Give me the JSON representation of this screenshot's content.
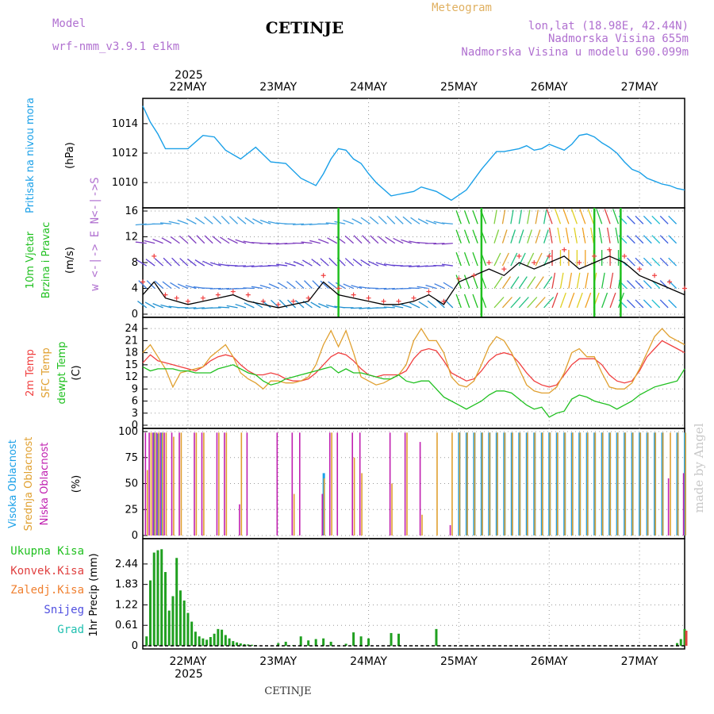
{
  "header": {
    "model_label": "Model",
    "model_name": "wrf-nmm_v3.9.1 e1km",
    "station": "CETINJE",
    "chart_kind": "Meteogram",
    "lonlat": "lon,lat (18.98E, 42.44N)",
    "altitude": "Nadmorska Visina 655m",
    "model_altitude": "Nadmorska Visina u modelu 690.099m",
    "footer_station": "CETINJE",
    "watermark": "made by Angel",
    "year": "2025"
  },
  "colors": {
    "pressure": "#1aa0e8",
    "temp2m": "#f04040",
    "sfc": "#e0a030",
    "dew": "#20c020",
    "cloud_high": "#1aa0e8",
    "cloud_mid": "#e0a030",
    "cloud_low": "#c020b0",
    "precip_total": "#20a020",
    "precip_conv": "#e04040",
    "precip_strat": "#f08030",
    "snow": "#5050e0",
    "hail": "#20c0b0"
  },
  "chart_data": [
    {
      "id": "pressure",
      "type": "line",
      "ylabel_main": "Pritisak na nivou mora",
      "ylabel_unit": "(hPa)",
      "x_unit": "hours from 22 May 00:00 (local)",
      "xlim": [
        -12,
        132
      ],
      "ylim": [
        1008.5,
        1015.5
      ],
      "yticks": [
        "1010",
        "1012",
        "1014"
      ],
      "x": [
        -12,
        -10,
        -8,
        -6,
        -3,
        0,
        4,
        7,
        10,
        14,
        18,
        22,
        26,
        30,
        34,
        36,
        38,
        40,
        42,
        44,
        46,
        48,
        50,
        54,
        56,
        60,
        62,
        66,
        70,
        74,
        78,
        82,
        84,
        88,
        90,
        92,
        94,
        96,
        100,
        102,
        104,
        106,
        108,
        110,
        112,
        114,
        116,
        118,
        120,
        122,
        124,
        126,
        128,
        130,
        132
      ],
      "values": [
        1015.2,
        1014.1,
        1013.3,
        1012.3,
        1012.3,
        1012.3,
        1013.2,
        1013.1,
        1012.2,
        1011.6,
        1012.4,
        1011.4,
        1011.3,
        1010.3,
        1009.8,
        1010.6,
        1011.6,
        1012.3,
        1012.2,
        1011.6,
        1011.3,
        1010.6,
        1010.0,
        1009.1,
        1009.2,
        1009.4,
        1009.7,
        1009.4,
        1008.8,
        1009.5,
        1010.9,
        1012.1,
        1012.1,
        1012.3,
        1012.5,
        1012.2,
        1012.3,
        1012.6,
        1012.2,
        1012.6,
        1013.2,
        1013.3,
        1013.1,
        1012.7,
        1012.4,
        1012.0,
        1011.4,
        1010.9,
        1010.7,
        1010.3,
        1010.1,
        1009.9,
        1009.8,
        1009.6,
        1009.5
      ]
    },
    {
      "id": "wind",
      "type": "line",
      "ylabel_main": "10m Vjetar",
      "ylabel_sub": "Brzina i Pravac",
      "ylabel_unit": "(m/s)",
      "compass": "w <-|-> E  N<-|->S",
      "ylim": [
        0,
        16
      ],
      "yticks": [
        "0",
        "4",
        "8",
        "12",
        "16"
      ],
      "x": [
        -12,
        -9,
        -6,
        -3,
        0,
        4,
        8,
        12,
        16,
        20,
        24,
        28,
        32,
        36,
        40,
        44,
        48,
        52,
        56,
        60,
        64,
        68,
        72,
        76,
        80,
        84,
        88,
        92,
        96,
        100,
        104,
        108,
        112,
        116,
        120,
        124,
        128,
        132
      ],
      "speed": [
        3,
        5,
        2.5,
        2,
        1.5,
        2,
        2.5,
        3,
        2,
        1.5,
        1,
        1.5,
        2,
        5,
        3,
        2.5,
        2,
        1.5,
        1.5,
        2,
        3,
        1.5,
        5,
        6,
        7,
        6,
        8,
        7,
        8,
        9,
        7,
        8,
        9,
        8,
        6,
        5,
        4,
        3
      ],
      "gust": [
        5,
        9,
        3,
        2.5,
        2,
        2.5,
        3,
        3.5,
        3,
        2,
        1.5,
        2,
        2.5,
        6,
        4,
        3,
        2.5,
        2,
        2,
        2.5,
        3.5,
        2,
        5.5,
        6,
        8,
        7,
        9,
        8,
        9,
        10,
        8,
        9,
        10,
        9,
        7,
        6,
        5,
        4
      ]
    },
    {
      "id": "temperature",
      "type": "line",
      "ylabel_series": [
        "2m Temp",
        "SFC Temp",
        "dewpt Temp"
      ],
      "ylabel_unit": "(C)",
      "ylim": [
        0,
        26
      ],
      "yticks": [
        "0",
        "3",
        "6",
        "9",
        "12",
        "15",
        "18",
        "21",
        "24"
      ],
      "x": [
        -12,
        -10,
        -8,
        -6,
        -4,
        -2,
        0,
        2,
        4,
        6,
        8,
        10,
        12,
        14,
        16,
        18,
        20,
        22,
        24,
        26,
        28,
        30,
        32,
        34,
        36,
        38,
        40,
        42,
        44,
        46,
        48,
        50,
        52,
        54,
        56,
        58,
        60,
        62,
        64,
        66,
        68,
        70,
        72,
        74,
        76,
        78,
        80,
        82,
        84,
        86,
        88,
        90,
        92,
        94,
        96,
        98,
        100,
        102,
        104,
        106,
        108,
        110,
        112,
        114,
        116,
        118,
        120,
        122,
        124,
        126,
        128,
        130,
        132
      ],
      "series": [
        {
          "name": "2m Temp",
          "color_key": "temp2m",
          "values": [
            15.5,
            17.5,
            16,
            15.5,
            15,
            14.5,
            14,
            13.5,
            14.5,
            16,
            17,
            17.5,
            17,
            15,
            13.5,
            12.5,
            12.5,
            13,
            12.5,
            11.5,
            11,
            11,
            11.5,
            13,
            15,
            17,
            18,
            17.5,
            16,
            14,
            12.5,
            12,
            12.5,
            12.5,
            12.5,
            13.5,
            16.5,
            18.5,
            19,
            18.5,
            16,
            13,
            12,
            11,
            11.5,
            13.5,
            16,
            17.5,
            18,
            17.5,
            15.5,
            13,
            11,
            10,
            9.5,
            10,
            12.5,
            15,
            16.5,
            16.5,
            16.5,
            15,
            12.5,
            11,
            10.5,
            11,
            13.5,
            17,
            19,
            21,
            20,
            19,
            18
          ]
        },
        {
          "name": "SFC Temp",
          "color_key": "sfc",
          "values": [
            18,
            20,
            17,
            14,
            9.5,
            13,
            13.5,
            14,
            14.5,
            17,
            18.5,
            20,
            17,
            13,
            11.5,
            10.5,
            9,
            11,
            11,
            10.5,
            10.5,
            11,
            12,
            15,
            20,
            23.5,
            19.5,
            23.5,
            18,
            12,
            11,
            10,
            10.5,
            11.5,
            12.5,
            15,
            21,
            24,
            21,
            21,
            18,
            12,
            10,
            9.5,
            11,
            15,
            19.5,
            22,
            21,
            18,
            14,
            10,
            8.5,
            8,
            8,
            9.5,
            13,
            18,
            19,
            17,
            17,
            13,
            9.5,
            9,
            9,
            10.5,
            14,
            18,
            22,
            24,
            22,
            21,
            20
          ]
        },
        {
          "name": "dewpt Temp",
          "color_key": "dew",
          "values": [
            14.5,
            13.5,
            14,
            14,
            14,
            13.5,
            13.5,
            13,
            13,
            13,
            14,
            14.5,
            15,
            14,
            13,
            12.5,
            11,
            10,
            10.5,
            11.5,
            12,
            12.5,
            13,
            13.5,
            14,
            14.5,
            13,
            14,
            13,
            13,
            12.5,
            12,
            11.5,
            11.5,
            12.5,
            11,
            10.5,
            11,
            11,
            9,
            7,
            6,
            5,
            4,
            5,
            6,
            7.5,
            8.5,
            8.5,
            8,
            6.5,
            5,
            4,
            4.5,
            2,
            3,
            3.5,
            6.5,
            7.5,
            7,
            6,
            5.5,
            5,
            4,
            5,
            6,
            7.5,
            8.5,
            9.5,
            10,
            10.5,
            11,
            14
          ]
        }
      ]
    },
    {
      "id": "clouds",
      "type": "bar",
      "ylabel_series": [
        "Visoka Oblacnost",
        "Srednja Oblacnost",
        "Niska Oblacnost"
      ],
      "ylabel_unit": "(%)",
      "ylim": [
        0,
        100
      ],
      "yticks": [
        "0",
        "25",
        "50",
        "75",
        "100"
      ],
      "x": [
        -11,
        -10,
        -9,
        -8,
        -7,
        -6,
        -4,
        -2,
        2,
        4,
        8,
        10,
        14,
        16,
        24,
        28,
        30,
        36,
        38,
        40,
        44,
        46,
        54,
        58,
        62,
        66,
        70,
        72,
        74,
        76,
        78,
        80,
        82,
        84,
        86,
        88,
        90,
        92,
        94,
        96,
        98,
        100,
        102,
        104,
        106,
        108,
        110,
        112,
        114,
        116,
        118,
        120,
        122,
        124,
        126,
        128,
        130,
        132
      ],
      "series": [
        {
          "name": "Visoka Oblacnost",
          "color_key": "cloud_high",
          "values": [
            0,
            0,
            99,
            98,
            99,
            0,
            0,
            0,
            0,
            0,
            0,
            0,
            0,
            0,
            0,
            0,
            0,
            60,
            0,
            0,
            0,
            0,
            0,
            0,
            0,
            0,
            0,
            99,
            99,
            99,
            99,
            99,
            99,
            99,
            99,
            99,
            99,
            99,
            99,
            99,
            99,
            99,
            99,
            99,
            99,
            99,
            99,
            99,
            99,
            99,
            99,
            99,
            99,
            99,
            99,
            0,
            99,
            99
          ]
        },
        {
          "name": "Srednja Oblacnost",
          "color_key": "cloud_mid",
          "values": [
            63,
            99,
            99,
            99,
            99,
            99,
            95,
            99,
            99,
            99,
            99,
            99,
            99,
            0,
            0,
            40,
            0,
            55,
            99,
            0,
            75,
            60,
            50,
            99,
            20,
            99,
            99,
            99,
            99,
            99,
            99,
            99,
            99,
            99,
            99,
            99,
            99,
            99,
            99,
            99,
            99,
            99,
            99,
            99,
            99,
            99,
            99,
            99,
            99,
            99,
            99,
            99,
            99,
            99,
            99,
            99,
            99,
            99
          ]
        },
        {
          "name": "Niska Oblacnost",
          "color_key": "cloud_low",
          "values": [
            99,
            99,
            99,
            99,
            99,
            99,
            99,
            99,
            99,
            99,
            99,
            99,
            30,
            99,
            99,
            99,
            99,
            40,
            99,
            99,
            99,
            99,
            99,
            99,
            90,
            0,
            10,
            0,
            0,
            0,
            0,
            0,
            0,
            0,
            0,
            0,
            0,
            0,
            0,
            0,
            0,
            0,
            0,
            0,
            0,
            0,
            0,
            0,
            0,
            0,
            0,
            0,
            0,
            0,
            0,
            55,
            0,
            60
          ]
        }
      ]
    },
    {
      "id": "precip",
      "type": "bar",
      "ylabel_series": [
        "Ukupna Kisa",
        "Konvek.Kisa",
        "Zaledj.Kisa",
        "Snijeg",
        "Grad"
      ],
      "ylabel_unit": "1hr Precip (mm)",
      "ylim": [
        0,
        3.1
      ],
      "yticks": [
        "0",
        "0.61",
        "1.22",
        "1.83",
        "2.44"
      ],
      "x": [
        -11,
        -10,
        -9,
        -8,
        -7,
        -6,
        -5,
        -4,
        -3,
        -2,
        -1,
        0,
        1,
        2,
        3,
        4,
        5,
        6,
        7,
        8,
        9,
        10,
        11,
        12,
        13,
        14,
        15,
        16,
        17,
        18,
        24,
        26,
        28,
        30,
        32,
        34,
        36,
        38,
        42,
        44,
        46,
        48,
        54,
        56,
        66,
        130,
        131,
        132
      ],
      "series": [
        {
          "name": "Ukupna Kisa",
          "color_key": "precip_total",
          "values": [
            0.28,
            1.95,
            2.78,
            2.85,
            2.88,
            2.2,
            1.05,
            1.48,
            2.62,
            1.65,
            1.35,
            0.98,
            0.72,
            0.42,
            0.28,
            0.22,
            0.18,
            0.26,
            0.36,
            0.5,
            0.48,
            0.32,
            0.22,
            0.14,
            0.1,
            0.07,
            0.05,
            0.04,
            0.03,
            0.02,
            0.08,
            0.12,
            0.02,
            0.28,
            0.16,
            0.2,
            0.22,
            0.12,
            0.06,
            0.4,
            0.28,
            0.22,
            0.38,
            0.36,
            0.5,
            0.08,
            0.2,
            0.5
          ]
        },
        {
          "name": "Konvek.Kisa",
          "color_key": "precip_conv",
          "values": [
            0,
            0,
            0,
            0,
            0,
            0,
            0,
            0,
            0,
            0,
            0,
            0,
            0,
            0,
            0,
            0,
            0,
            0,
            0,
            0,
            0,
            0,
            0,
            0,
            0,
            0,
            0,
            0,
            0,
            0,
            0,
            0,
            0,
            0,
            0,
            0,
            0,
            0,
            0,
            0,
            0,
            0,
            0,
            0,
            0,
            0,
            0,
            0.45
          ]
        }
      ]
    }
  ],
  "x_axis": {
    "day_labels": [
      "22MAY",
      "23MAY",
      "24MAY",
      "25MAY",
      "26MAY",
      "27MAY"
    ],
    "day_hours": [
      0,
      24,
      48,
      72,
      96,
      120
    ]
  }
}
